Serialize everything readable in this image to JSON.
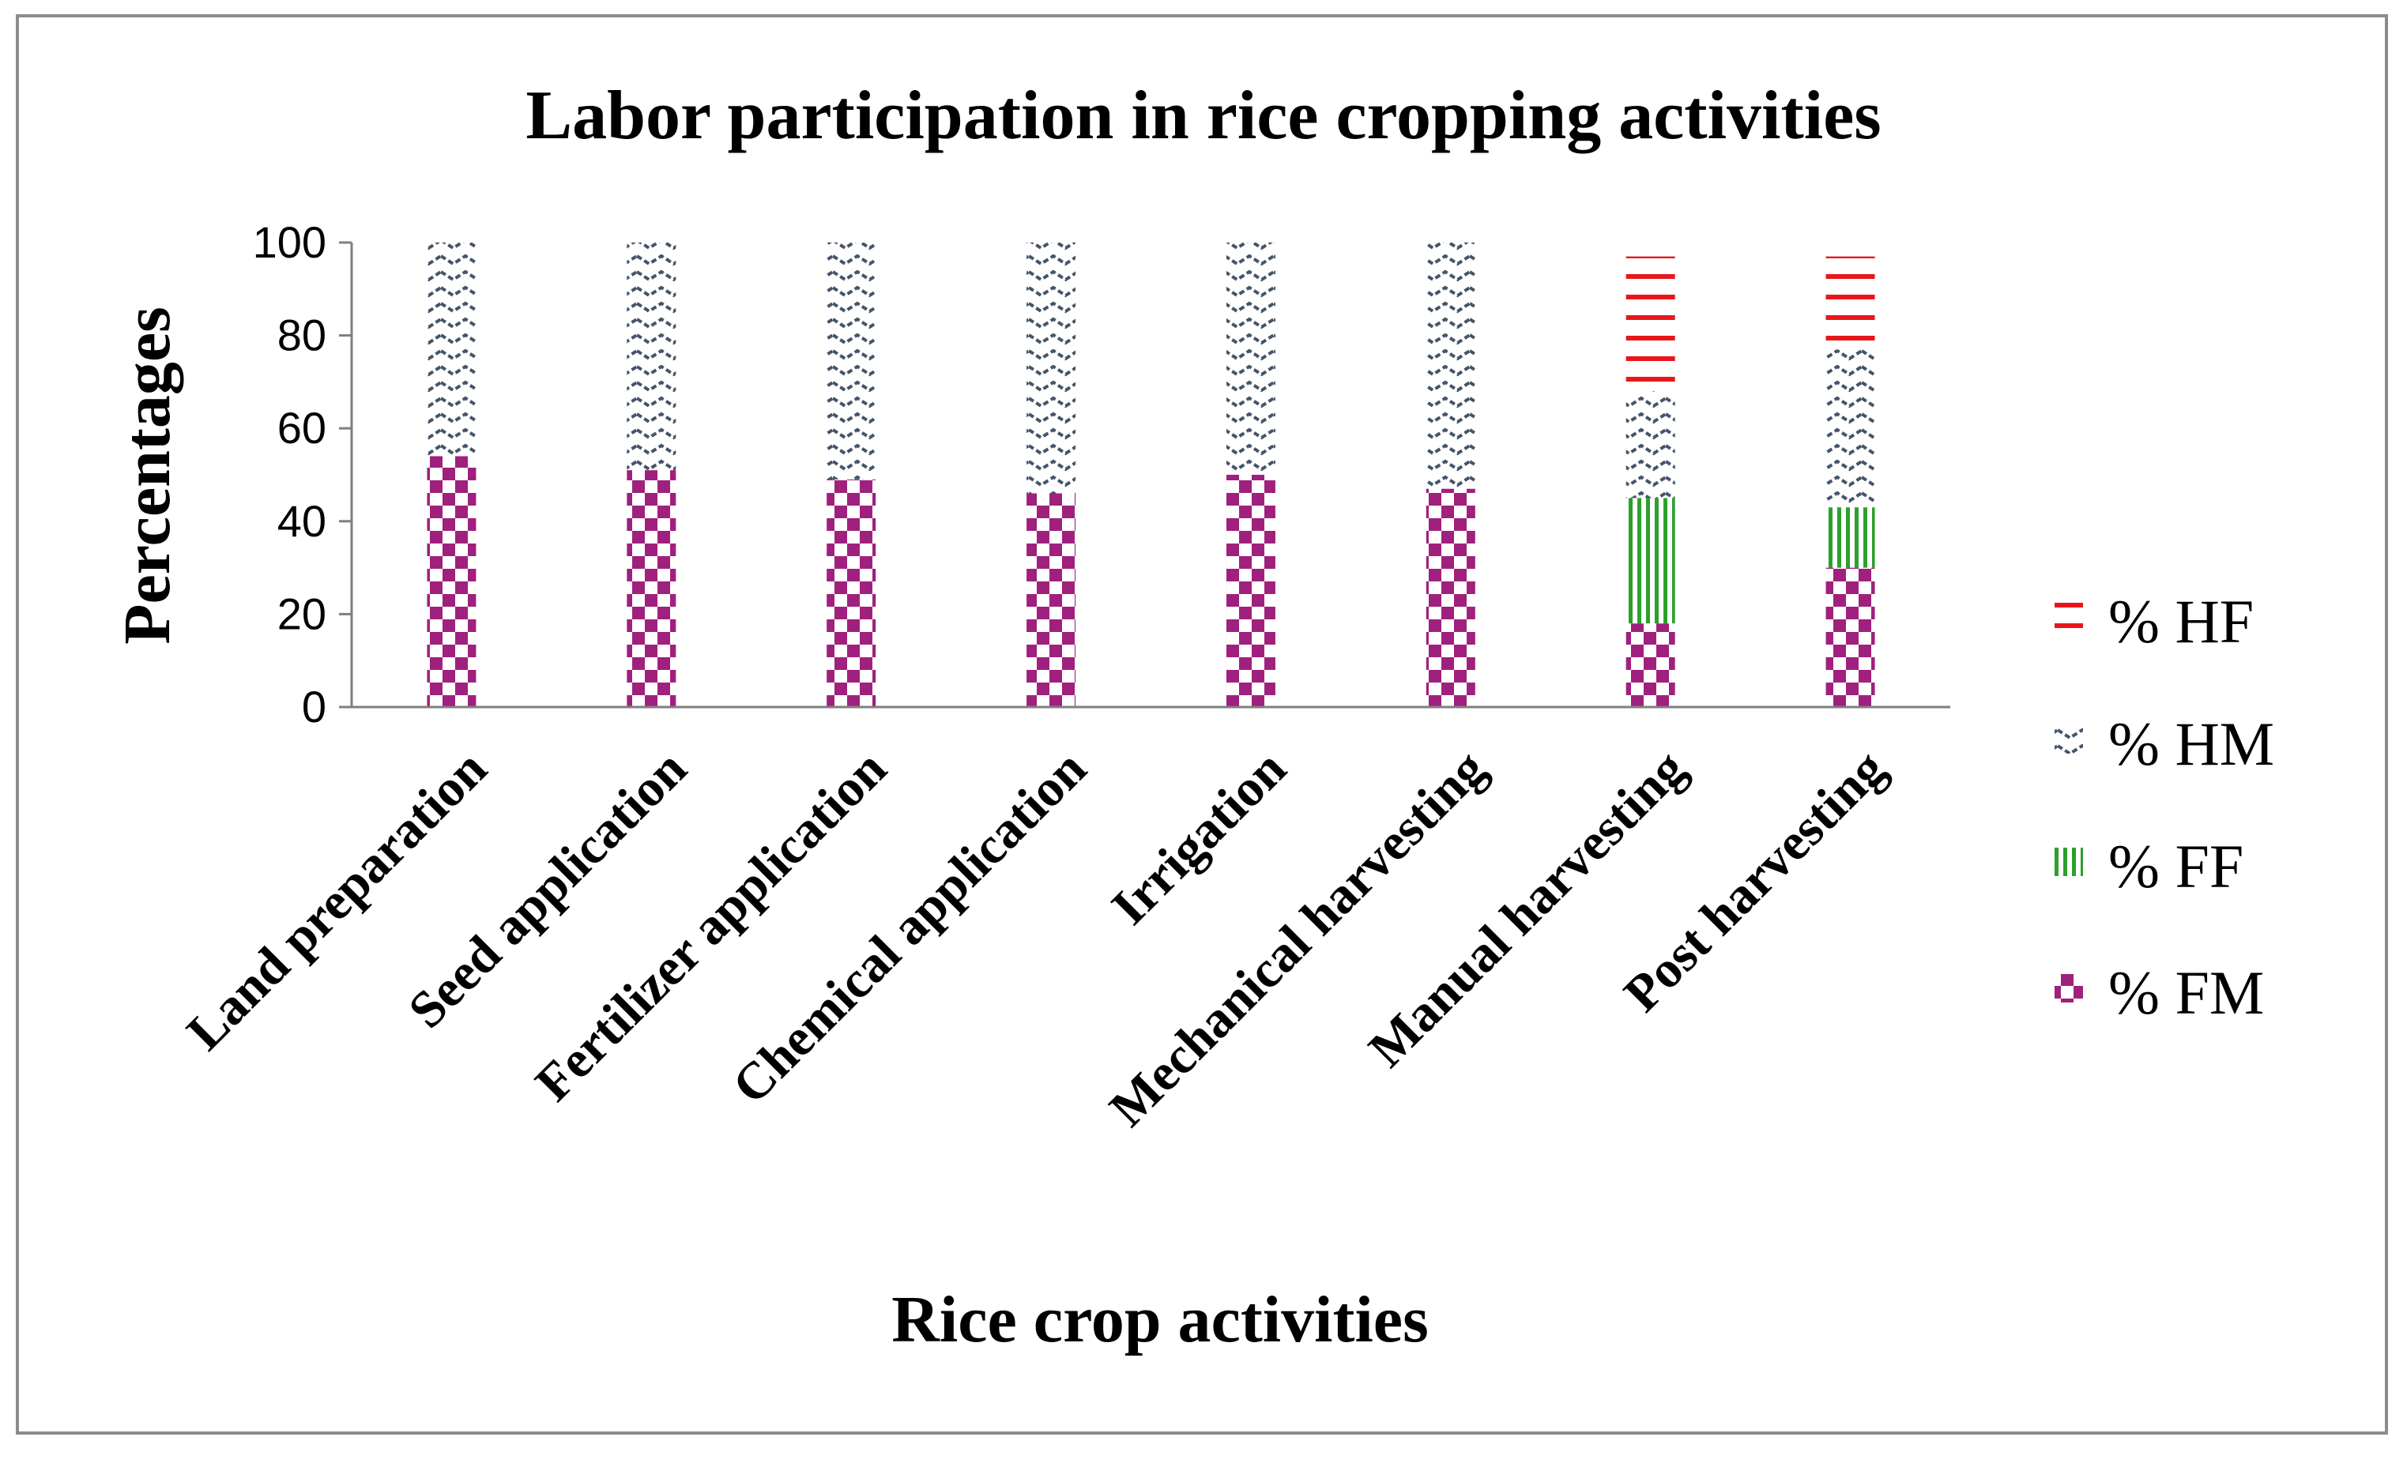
{
  "chart_data": {
    "type": "bar",
    "stacked": true,
    "title": "Labor participation in rice cropping activities",
    "xlabel": "Rice crop activities",
    "ylabel": "Percentages",
    "ylim": [
      0,
      100
    ],
    "yticks": [
      "0",
      "20",
      "40",
      "60",
      "80",
      "100"
    ],
    "categories": [
      "Land preparation",
      "Seed application",
      "Fertilizer application",
      "Chemical application",
      "Irrigation",
      "Mechanical harvesting",
      "Manual harvesting",
      "Post harvesting"
    ],
    "series": [
      {
        "name": "% FM",
        "values": [
          54,
          51,
          49,
          46,
          50,
          47,
          18,
          30
        ]
      },
      {
        "name": "% FF",
        "values": [
          0,
          0,
          0,
          0,
          0,
          0,
          27,
          13
        ]
      },
      {
        "name": "% HM",
        "values": [
          46,
          49,
          51,
          54,
          50,
          53,
          23,
          34
        ]
      },
      {
        "name": "% HF",
        "values": [
          0,
          0,
          0,
          0,
          0,
          0,
          29,
          20
        ]
      }
    ],
    "legend_order": [
      "% HF",
      "% HM",
      "% FF",
      "% FM"
    ],
    "legend_position": "right",
    "colors": {
      "% FM": "#a0207d",
      "% FF": "#2ca02c",
      "% HM": "#44546a",
      "% HF": "#e8161b"
    }
  }
}
